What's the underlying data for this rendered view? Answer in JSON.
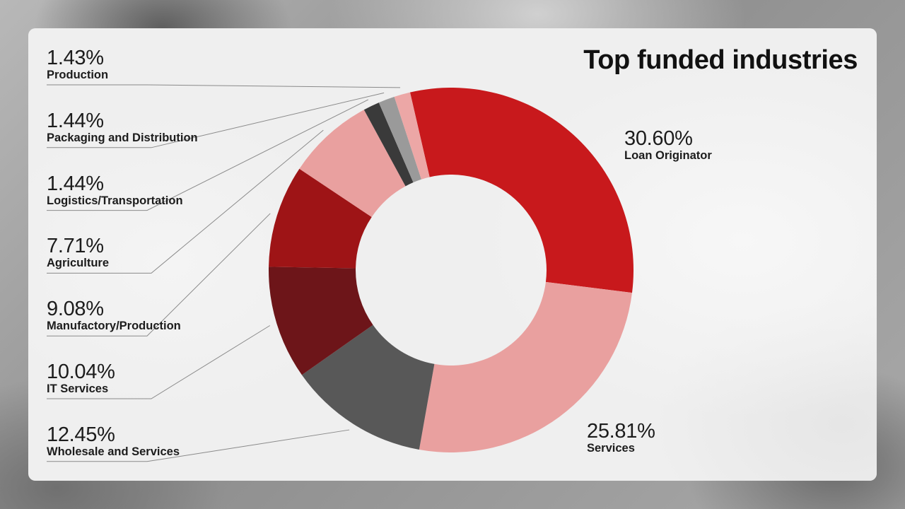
{
  "title": "Top funded industries",
  "colors": {
    "red": "#c8191c",
    "pink": "#e9a09f",
    "dark_gray": "#585858",
    "maroon": "#6d1519",
    "deep_red": "#9e1416",
    "charcoal": "#3a3a3a",
    "gray": "#9a9a9a",
    "light_pink": "#eca7a6",
    "leader_line": "#8a8a8a"
  },
  "chart_data": {
    "type": "pie",
    "variant": "donut",
    "title": "Top funded industries",
    "slices": [
      {
        "name": "Loan Originator",
        "value": 30.6,
        "label": "30.60%",
        "color": "#c8191c"
      },
      {
        "name": "Services",
        "value": 25.81,
        "label": "25.81%",
        "color": "#e9a09f"
      },
      {
        "name": "Wholesale and Services",
        "value": 12.45,
        "label": "12.45%",
        "color": "#585858"
      },
      {
        "name": "IT Services",
        "value": 10.04,
        "label": "10.04%",
        "color": "#6d1519"
      },
      {
        "name": "Manufactory/Production",
        "value": 9.08,
        "label": "9.08%",
        "color": "#9e1416"
      },
      {
        "name": "Agriculture",
        "value": 7.71,
        "label": "7.71%",
        "color": "#e9a09f"
      },
      {
        "name": "Logistics/Transportation",
        "value": 1.44,
        "label": "1.44%",
        "color": "#3a3a3a"
      },
      {
        "name": "Packaging and Distribution",
        "value": 1.44,
        "label": "1.44%",
        "color": "#9a9a9a"
      },
      {
        "name": "Production",
        "value": 1.43,
        "label": "1.43%",
        "color": "#eca7a6"
      }
    ]
  }
}
